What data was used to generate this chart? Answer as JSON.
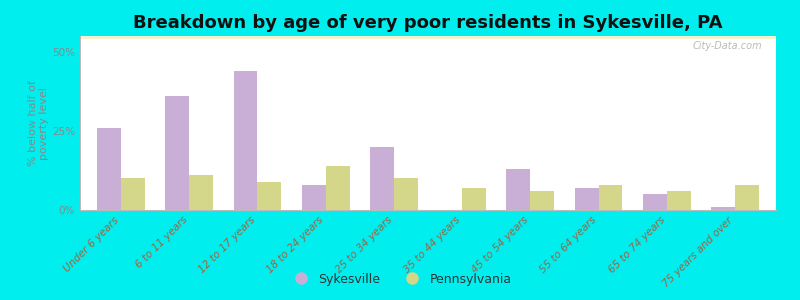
{
  "title": "Breakdown by age of very poor residents in Sykesville, PA",
  "categories": [
    "Under 6 years",
    "6 to 11 years",
    "12 to 17 years",
    "18 to 24 years",
    "25 to 34 years",
    "35 to 44 years",
    "45 to 54 years",
    "55 to 64 years",
    "65 to 74 years",
    "75 years and over"
  ],
  "sykesville_values": [
    26,
    36,
    44,
    8,
    20,
    0,
    13,
    7,
    5,
    1
  ],
  "pennsylvania_values": [
    10,
    11,
    9,
    14,
    10,
    7,
    6,
    8,
    6,
    8
  ],
  "sykesville_color": "#c9aed6",
  "pennsylvania_color": "#d4d68a",
  "background_color": "#00eeee",
  "ylabel": "% below half of\npoverty level",
  "ylim": [
    0,
    55
  ],
  "yticks": [
    0,
    25,
    50
  ],
  "ytick_labels": [
    "0%",
    "25%",
    "50%"
  ],
  "bar_width": 0.35,
  "title_fontsize": 13,
  "axis_label_fontsize": 8,
  "tick_label_fontsize": 7.5,
  "xtick_color": "#996644",
  "ytick_color": "#888888",
  "legend_labels": [
    "Sykesville",
    "Pennsylvania"
  ],
  "watermark": "City-Data.com"
}
